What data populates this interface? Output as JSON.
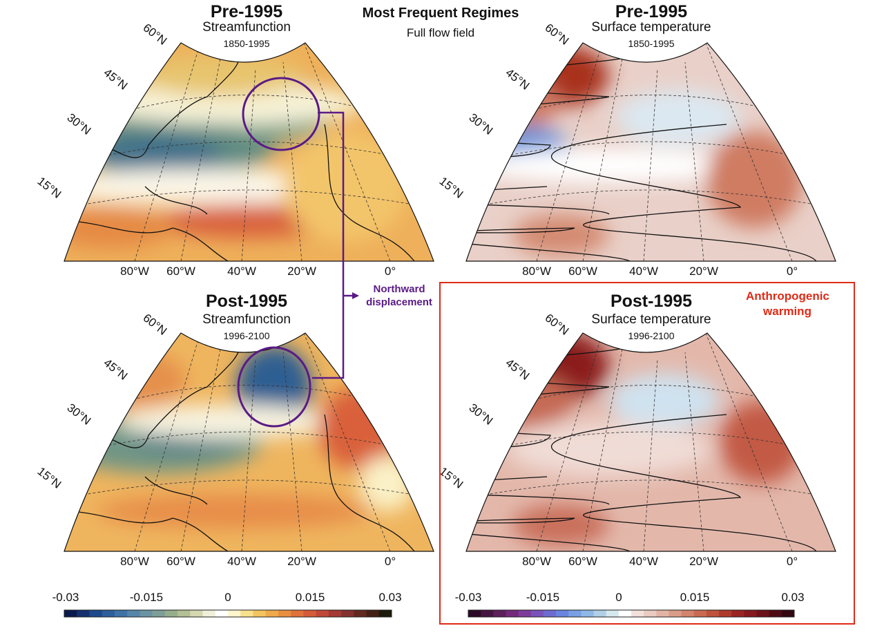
{
  "header": {
    "title": "Most Frequent Regimes",
    "subtitle": "Full flow field"
  },
  "panels": [
    {
      "title": "Pre-1995",
      "variable": "Streamfunction",
      "period": "1850-1995"
    },
    {
      "title": "Pre-1995",
      "variable": "Surface temperature",
      "period": "1850-1995"
    },
    {
      "title": "Post-1995",
      "variable": "Streamfunction",
      "period": "1996-2100"
    },
    {
      "title": "Post-1995",
      "variable": "Surface temperature",
      "period": "1996-2100"
    }
  ],
  "lat_labels": [
    "60°N",
    "45°N",
    "30°N",
    "15°N"
  ],
  "lon_labels": [
    "80°W",
    "60°W",
    "40°W",
    "20°W",
    "0°"
  ],
  "annotations": {
    "displacement": "Northward displacement",
    "warming": "Anthropogenic warming",
    "displacement_color": "#5a1a86",
    "warming_color": "#e02a16"
  },
  "colorbars": [
    {
      "ticks": [
        "-0.03",
        "-0.015",
        "0",
        "0.015",
        "0.03"
      ],
      "colormap": "blue-green-white-yellow-orange-red-brown"
    },
    {
      "ticks": [
        "-0.03",
        "-0.015",
        "0",
        "0.015",
        "0.03"
      ],
      "colormap": "purple-blue-white-red"
    }
  ]
}
